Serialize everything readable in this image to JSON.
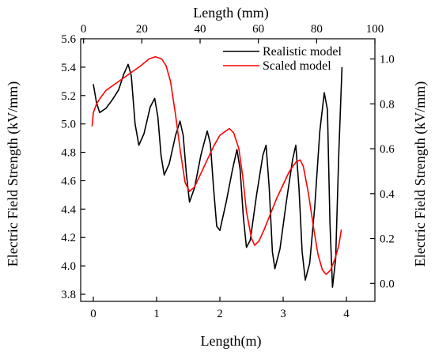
{
  "chart_data": {
    "type": "line",
    "axes": {
      "bottom": {
        "label": "Length(m)",
        "range": [
          -0.2,
          4.45
        ],
        "ticks": [
          0,
          1,
          2,
          3,
          4
        ]
      },
      "top": {
        "label": "Length (mm)",
        "range": [
          -1,
          100
        ],
        "ticks": [
          0,
          20,
          40,
          60,
          80,
          100
        ]
      },
      "left": {
        "label": "Electric Field Strength (kV/mm)",
        "range": [
          3.75,
          5.6
        ],
        "ticks": [
          3.8,
          4.0,
          4.2,
          4.4,
          4.6,
          4.8,
          5.0,
          5.2,
          5.4,
          5.6
        ],
        "tick_labels": [
          "3.8",
          "4.0",
          "4.2",
          "4.4",
          "4.6",
          "4.8",
          "5.0",
          "5.2",
          "5.4",
          "5.6"
        ]
      },
      "right": {
        "label": "Electric Field Strength (kV/mm)",
        "range": [
          -0.08,
          1.09
        ],
        "ticks": [
          0.0,
          0.2,
          0.4,
          0.6,
          0.8,
          1.0
        ],
        "tick_labels": [
          "0.0",
          "0.2",
          "0.4",
          "0.6",
          "0.8",
          "1.0"
        ]
      }
    },
    "legend": {
      "position": "top-right"
    },
    "series": [
      {
        "name": "Realistic model",
        "color": "#000000",
        "x_axis": "bottom",
        "y_axis": "left",
        "points": [
          [
            0.0,
            5.28
          ],
          [
            0.05,
            5.15
          ],
          [
            0.1,
            5.08
          ],
          [
            0.2,
            5.11
          ],
          [
            0.3,
            5.17
          ],
          [
            0.4,
            5.24
          ],
          [
            0.48,
            5.35
          ],
          [
            0.55,
            5.42
          ],
          [
            0.6,
            5.34
          ],
          [
            0.66,
            5.0
          ],
          [
            0.72,
            4.85
          ],
          [
            0.8,
            4.93
          ],
          [
            0.9,
            5.12
          ],
          [
            0.97,
            5.18
          ],
          [
            1.02,
            5.05
          ],
          [
            1.07,
            4.78
          ],
          [
            1.12,
            4.64
          ],
          [
            1.2,
            4.72
          ],
          [
            1.3,
            4.92
          ],
          [
            1.37,
            5.02
          ],
          [
            1.42,
            4.92
          ],
          [
            1.47,
            4.65
          ],
          [
            1.52,
            4.45
          ],
          [
            1.6,
            4.55
          ],
          [
            1.7,
            4.78
          ],
          [
            1.8,
            4.95
          ],
          [
            1.85,
            4.86
          ],
          [
            1.9,
            4.55
          ],
          [
            1.95,
            4.28
          ],
          [
            2.0,
            4.25
          ],
          [
            2.1,
            4.45
          ],
          [
            2.2,
            4.68
          ],
          [
            2.27,
            4.82
          ],
          [
            2.32,
            4.68
          ],
          [
            2.37,
            4.35
          ],
          [
            2.42,
            4.13
          ],
          [
            2.48,
            4.18
          ],
          [
            2.58,
            4.5
          ],
          [
            2.68,
            4.78
          ],
          [
            2.73,
            4.85
          ],
          [
            2.78,
            4.55
          ],
          [
            2.83,
            4.1
          ],
          [
            2.87,
            3.98
          ],
          [
            2.95,
            4.12
          ],
          [
            3.05,
            4.45
          ],
          [
            3.15,
            4.75
          ],
          [
            3.2,
            4.85
          ],
          [
            3.25,
            4.55
          ],
          [
            3.3,
            4.1
          ],
          [
            3.35,
            3.9
          ],
          [
            3.42,
            4.02
          ],
          [
            3.5,
            4.42
          ],
          [
            3.58,
            4.95
          ],
          [
            3.65,
            5.22
          ],
          [
            3.7,
            5.1
          ],
          [
            3.74,
            4.3
          ],
          [
            3.78,
            3.85
          ],
          [
            3.83,
            4.05
          ],
          [
            3.88,
            4.8
          ],
          [
            3.93,
            5.4
          ]
        ]
      },
      {
        "name": "Scaled model",
        "color": "#ff0000",
        "x_axis": "bottom",
        "y_axis": "right",
        "points": [
          [
            -0.02,
            0.7
          ],
          [
            0.0,
            0.76
          ],
          [
            0.05,
            0.8
          ],
          [
            0.12,
            0.83
          ],
          [
            0.2,
            0.86
          ],
          [
            0.3,
            0.88
          ],
          [
            0.45,
            0.91
          ],
          [
            0.6,
            0.94
          ],
          [
            0.75,
            0.97
          ],
          [
            0.88,
            1.0
          ],
          [
            0.98,
            1.01
          ],
          [
            1.08,
            1.0
          ],
          [
            1.15,
            0.97
          ],
          [
            1.22,
            0.9
          ],
          [
            1.3,
            0.75
          ],
          [
            1.38,
            0.58
          ],
          [
            1.45,
            0.45
          ],
          [
            1.52,
            0.41
          ],
          [
            1.6,
            0.43
          ],
          [
            1.7,
            0.49
          ],
          [
            1.8,
            0.55
          ],
          [
            1.9,
            0.61
          ],
          [
            2.0,
            0.66
          ],
          [
            2.1,
            0.68
          ],
          [
            2.15,
            0.69
          ],
          [
            2.22,
            0.67
          ],
          [
            2.3,
            0.6
          ],
          [
            2.36,
            0.48
          ],
          [
            2.42,
            0.32
          ],
          [
            2.5,
            0.2
          ],
          [
            2.55,
            0.17
          ],
          [
            2.62,
            0.19
          ],
          [
            2.7,
            0.24
          ],
          [
            2.8,
            0.31
          ],
          [
            2.9,
            0.38
          ],
          [
            3.0,
            0.44
          ],
          [
            3.1,
            0.5
          ],
          [
            3.2,
            0.54
          ],
          [
            3.27,
            0.55
          ],
          [
            3.32,
            0.52
          ],
          [
            3.4,
            0.4
          ],
          [
            3.48,
            0.25
          ],
          [
            3.55,
            0.13
          ],
          [
            3.62,
            0.06
          ],
          [
            3.68,
            0.04
          ],
          [
            3.75,
            0.06
          ],
          [
            3.82,
            0.11
          ],
          [
            3.88,
            0.17
          ],
          [
            3.92,
            0.24
          ]
        ]
      }
    ]
  }
}
